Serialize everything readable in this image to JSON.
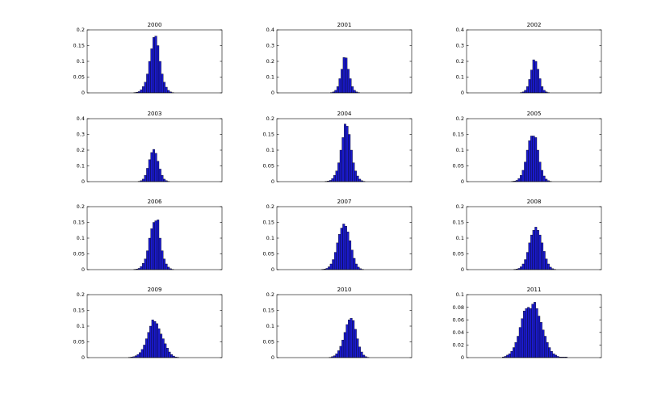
{
  "figure": {
    "layout": "4x3 grid",
    "background": "#ffffff"
  },
  "chart_data": [
    {
      "type": "bar",
      "title": "2000",
      "ylim": [
        0,
        0.2
      ],
      "yticks": [
        "0",
        "0.05",
        "0.1",
        "0.15",
        "0.2"
      ],
      "bar_color": "#1a1acc",
      "center": -1,
      "values": [
        0.001,
        0.002,
        0.004,
        0.01,
        0.02,
        0.034,
        0.06,
        0.1,
        0.14,
        0.176,
        0.18,
        0.15,
        0.1,
        0.06,
        0.034,
        0.018,
        0.008,
        0.003,
        0.001
      ]
    },
    {
      "type": "bar",
      "title": "2001",
      "ylim": [
        0,
        0.4
      ],
      "yticks": [
        "0",
        "0.1",
        "0.2",
        "0.3",
        "0.4"
      ],
      "bar_color": "#1a1acc",
      "center": 1,
      "values": [
        0.002,
        0.006,
        0.016,
        0.04,
        0.09,
        0.15,
        0.225,
        0.222,
        0.15,
        0.09,
        0.04,
        0.016,
        0.006,
        0.002
      ]
    },
    {
      "type": "bar",
      "title": "2002",
      "ylim": [
        0,
        0.4
      ],
      "yticks": [
        "0",
        "0.1",
        "0.2",
        "0.3",
        "0.4"
      ],
      "bar_color": "#1a1acc",
      "center": 1,
      "values": [
        0.002,
        0.006,
        0.016,
        0.04,
        0.085,
        0.145,
        0.21,
        0.2,
        0.15,
        0.09,
        0.04,
        0.016,
        0.006,
        0.002
      ]
    },
    {
      "type": "bar",
      "title": "2003",
      "ylim": [
        0,
        0.4
      ],
      "yticks": [
        "0",
        "0.1",
        "0.2",
        "0.3",
        "0.4"
      ],
      "bar_color": "#1a1acc",
      "center": -1,
      "values": [
        0.002,
        0.006,
        0.016,
        0.04,
        0.085,
        0.14,
        0.185,
        0.205,
        0.18,
        0.13,
        0.08,
        0.04,
        0.016,
        0.006,
        0.002
      ]
    },
    {
      "type": "bar",
      "title": "2004",
      "ylim": [
        0,
        0.2
      ],
      "yticks": [
        "0",
        "0.05",
        "0.1",
        "0.15",
        "0.2"
      ],
      "bar_color": "#1a1acc",
      "center": 1,
      "values": [
        0.001,
        0.002,
        0.004,
        0.01,
        0.02,
        0.034,
        0.06,
        0.1,
        0.14,
        0.183,
        0.176,
        0.15,
        0.1,
        0.06,
        0.034,
        0.018,
        0.008,
        0.003,
        0.001
      ]
    },
    {
      "type": "bar",
      "title": "2005",
      "ylim": [
        0,
        0.2
      ],
      "yticks": [
        "0",
        "0.05",
        "0.1",
        "0.15",
        "0.2"
      ],
      "bar_color": "#1a1acc",
      "center": -3,
      "values": [
        0.001,
        0.002,
        0.004,
        0.01,
        0.02,
        0.036,
        0.062,
        0.1,
        0.13,
        0.145,
        0.145,
        0.14,
        0.1,
        0.062,
        0.036,
        0.018,
        0.008,
        0.003,
        0.001
      ]
    },
    {
      "type": "bar",
      "title": "2006",
      "ylim": [
        0,
        0.2
      ],
      "yticks": [
        "0",
        "0.05",
        "0.1",
        "0.15",
        "0.2"
      ],
      "bar_color": "#1a1acc",
      "center": -1,
      "values": [
        0.001,
        0.002,
        0.004,
        0.01,
        0.02,
        0.034,
        0.06,
        0.1,
        0.13,
        0.15,
        0.155,
        0.158,
        0.1,
        0.06,
        0.034,
        0.018,
        0.008,
        0.003,
        0.001
      ]
    },
    {
      "type": "bar",
      "title": "2007",
      "ylim": [
        0,
        0.2
      ],
      "yticks": [
        "0",
        "0.05",
        "0.1",
        "0.15",
        "0.2"
      ],
      "bar_color": "#1a1acc",
      "center": -2,
      "values": [
        0.001,
        0.002,
        0.004,
        0.009,
        0.018,
        0.032,
        0.055,
        0.085,
        0.112,
        0.132,
        0.145,
        0.138,
        0.12,
        0.092,
        0.062,
        0.036,
        0.018,
        0.008,
        0.003,
        0.001
      ]
    },
    {
      "type": "bar",
      "title": "2008",
      "ylim": [
        0,
        0.2
      ],
      "yticks": [
        "0",
        "0.05",
        "0.1",
        "0.15",
        "0.2"
      ],
      "bar_color": "#1a1acc",
      "center": 1,
      "values": [
        0.001,
        0.002,
        0.004,
        0.009,
        0.018,
        0.032,
        0.055,
        0.085,
        0.11,
        0.125,
        0.135,
        0.125,
        0.11,
        0.085,
        0.058,
        0.034,
        0.018,
        0.008,
        0.003,
        0.001
      ]
    },
    {
      "type": "bar",
      "title": "2009",
      "ylim": [
        0,
        0.2
      ],
      "yticks": [
        "0",
        "0.05",
        "0.1",
        "0.15",
        "0.2"
      ],
      "bar_color": "#1a1acc",
      "center": -1,
      "values": [
        0.001,
        0.002,
        0.003,
        0.006,
        0.01,
        0.016,
        0.026,
        0.04,
        0.06,
        0.08,
        0.1,
        0.12,
        0.115,
        0.108,
        0.092,
        0.075,
        0.06,
        0.044,
        0.03,
        0.018,
        0.01,
        0.005,
        0.002,
        0.001
      ]
    },
    {
      "type": "bar",
      "title": "2010",
      "ylim": [
        0,
        0.2
      ],
      "yticks": [
        "0",
        "0.05",
        "0.1",
        "0.15",
        "0.2"
      ],
      "bar_color": "#1a1acc",
      "center": 6,
      "values": [
        0.001,
        0.003,
        0.006,
        0.012,
        0.022,
        0.036,
        0.056,
        0.08,
        0.105,
        0.12,
        0.125,
        0.118,
        0.09,
        0.06,
        0.034,
        0.018,
        0.008,
        0.003,
        0.001
      ]
    },
    {
      "type": "bar",
      "title": "2011",
      "ylim": [
        0,
        0.1
      ],
      "yticks": [
        "0",
        "0.02",
        "0.04",
        "0.06",
        "0.08",
        "0.1"
      ],
      "bar_color": "#1a1acc",
      "center": 1,
      "values": [
        0.001,
        0.002,
        0.004,
        0.006,
        0.01,
        0.016,
        0.024,
        0.034,
        0.048,
        0.062,
        0.074,
        0.078,
        0.08,
        0.078,
        0.085,
        0.088,
        0.078,
        0.066,
        0.056,
        0.044,
        0.034,
        0.024,
        0.016,
        0.01,
        0.006,
        0.004,
        0.002,
        0.001,
        0.001,
        0.001,
        0.001
      ]
    }
  ]
}
